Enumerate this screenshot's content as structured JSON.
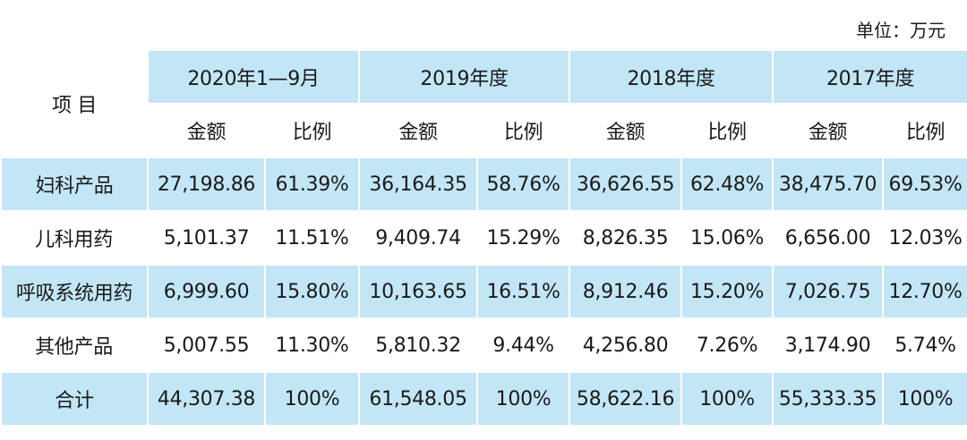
{
  "unit": "单位：万元",
  "table": {
    "item_header": "项 目",
    "periods": [
      "2020年1—9月",
      "2019年度",
      "2018年度",
      "2017年度"
    ],
    "columns": [
      "金额",
      "比例",
      "金额",
      "比例",
      "金额",
      "比例",
      "金额",
      "比例"
    ],
    "rows": [
      [
        "妇科产品",
        "27,198.86",
        "61.39%",
        "36,164.35",
        "58.76%",
        "36,626.55",
        "62.48%",
        "38,475.70",
        "69.53%"
      ],
      [
        "儿科用药",
        "5,101.37",
        "11.51%",
        "9,409.74",
        "15.29%",
        "8,826.35",
        "15.06%",
        "6,656.00",
        "12.03%"
      ],
      [
        "呼吸系统用药",
        "6,999.60",
        "15.80%",
        "10,163.65",
        "16.51%",
        "8,912.46",
        "15.20%",
        "7,026.75",
        "12.70%"
      ],
      [
        "其他产品",
        "5,007.55",
        "11.30%",
        "5,810.32",
        "9.44%",
        "4,256.80",
        "7.26%",
        "3,174.90",
        "5.74%"
      ],
      [
        "合计",
        "44,307.38",
        "100%",
        "61,548.05",
        "100%",
        "58,622.16",
        "100%",
        "55,333.35",
        "100%"
      ]
    ]
  }
}
